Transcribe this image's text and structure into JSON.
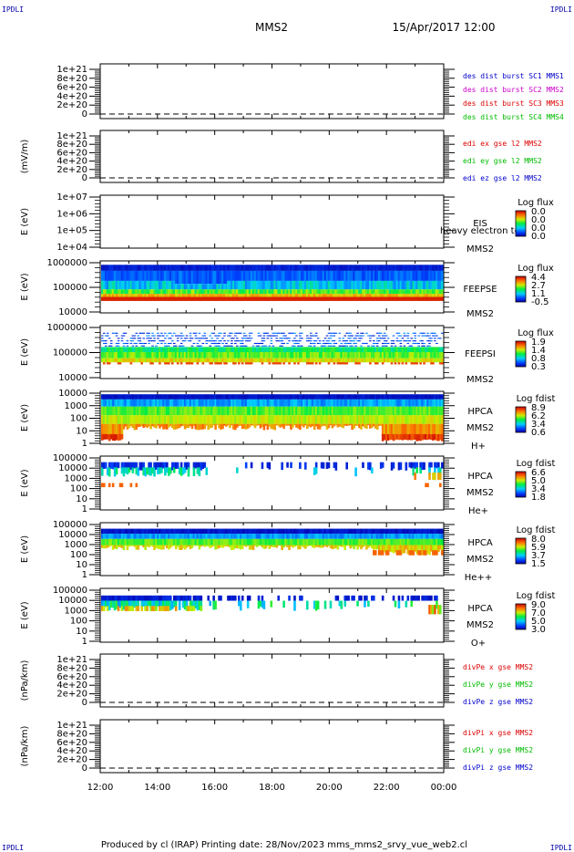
{
  "header": {
    "corner_left": "IPDLI",
    "corner_right": "IPDLI",
    "spacecraft": "MMS2",
    "datetime": "15/Apr/2017 12:00"
  },
  "footer": {
    "text": "Produced by cl (IRAP)   Printing date: 28/Nov/2023   mms_mms2_srvy_vue_web2.cl",
    "corner_left": "IPDLI",
    "corner_right": "IPDLI"
  },
  "colors": {
    "blue": "#0000cc",
    "magenta": "#cc00cc",
    "red": "#dd0000",
    "green": "#00bb00"
  },
  "chart_data": {
    "type": "heatmap",
    "x_ticks": [
      "12:00",
      "14:00",
      "16:00",
      "18:00",
      "20:00",
      "22:00",
      "00:00"
    ],
    "panels": [
      {
        "kind": "line",
        "ylabel": "",
        "yticks": [
          "1e+21",
          "8e+20",
          "6e+20",
          "4e+20",
          "2e+20",
          "0"
        ],
        "legend": [
          {
            "text": "des dist burst SC1 MMS1",
            "color": "#0000cc"
          },
          {
            "text": "des dist burst SC2 MMS2",
            "color": "#cc00cc"
          },
          {
            "text": "des dist burst SC3 MMS3",
            "color": "#dd0000"
          },
          {
            "text": "des dist burst SC4 MMS4",
            "color": "#00bb00"
          }
        ]
      },
      {
        "kind": "line",
        "ylabel": "(mV/m)",
        "yticks": [
          "1e+21",
          "8e+20",
          "6e+20",
          "4e+20",
          "2e+20",
          "0"
        ],
        "legend": [
          {
            "text": "edi ex gse l2 MMS2",
            "color": "#dd0000"
          },
          {
            "text": "edi ey gse l2 MMS2",
            "color": "#00bb00"
          },
          {
            "text": "edi ez gse l2 MMS2",
            "color": "#0000cc"
          }
        ]
      },
      {
        "kind": "spectro",
        "ylabel": "E (eV)",
        "yticks": [
          "1e+07",
          "1e+06",
          "1e+05",
          "1e+04"
        ],
        "instrument": [
          "EIS",
          "MMS2"
        ],
        "species": "",
        "overlay": "heavy electron to",
        "cb_title": "Log flux",
        "cb_ticks": [
          "0.0",
          "0.0",
          "0.0",
          "0.0"
        ],
        "fill": "none"
      },
      {
        "kind": "spectro",
        "ylabel": "E (eV)",
        "yticks": [
          "1000000",
          "100000",
          "10000"
        ],
        "instrument": [
          "FEEPSE",
          "MMS2"
        ],
        "species": "",
        "cb_title": "Log flux",
        "cb_ticks": [
          "4.4",
          "2.7",
          "1.1",
          "-0.5"
        ],
        "fill": "feepse"
      },
      {
        "kind": "spectro",
        "ylabel": "E (eV)",
        "yticks": [
          "1000000",
          "100000",
          "10000"
        ],
        "instrument": [
          "FEEPSI",
          "MMS2"
        ],
        "species": "",
        "cb_title": "Log flux",
        "cb_ticks": [
          "1.9",
          "1.4",
          "0.8",
          "0.3"
        ],
        "fill": "feepsi"
      },
      {
        "kind": "spectro",
        "ylabel": "E (eV)",
        "yticks": [
          "10000",
          "1000",
          "100",
          "10",
          "1"
        ],
        "instrument": [
          "HPCA",
          "MMS2"
        ],
        "species": "H+",
        "cb_title": "Log fdist",
        "cb_ticks": [
          "8.9",
          "6.2",
          "3.4",
          "0.6"
        ],
        "fill": "h"
      },
      {
        "kind": "spectro",
        "ylabel": "E (eV)",
        "yticks": [
          "100000",
          "10000",
          "1000",
          "100",
          "10",
          "1"
        ],
        "instrument": [
          "HPCA",
          "MMS2"
        ],
        "species": "He+",
        "cb_title": "Log fdist",
        "cb_ticks": [
          "6.6",
          "5.0",
          "3.4",
          "1.8"
        ],
        "fill": "he"
      },
      {
        "kind": "spectro",
        "ylabel": "E (eV)",
        "yticks": [
          "100000",
          "10000",
          "1000",
          "100",
          "10",
          "1"
        ],
        "instrument": [
          "HPCA",
          "MMS2"
        ],
        "species": "He++",
        "cb_title": "Log fdist",
        "cb_ticks": [
          "8.0",
          "5.9",
          "3.7",
          "1.5"
        ],
        "fill": "hepp"
      },
      {
        "kind": "spectro",
        "ylabel": "E (eV)",
        "yticks": [
          "100000",
          "10000",
          "1000",
          "100",
          "10",
          "1"
        ],
        "instrument": [
          "HPCA",
          "MMS2"
        ],
        "species": "O+",
        "cb_title": "Log fdist",
        "cb_ticks": [
          "9.0",
          "7.0",
          "5.0",
          "3.0"
        ],
        "fill": "o"
      },
      {
        "kind": "line",
        "ylabel": "(nPa/km)",
        "yticks": [
          "1e+21",
          "8e+20",
          "6e+20",
          "4e+20",
          "2e+20",
          "0"
        ],
        "legend": [
          {
            "text": "divPe x gse MMS2",
            "color": "#dd0000"
          },
          {
            "text": "divPe y gse MMS2",
            "color": "#00bb00"
          },
          {
            "text": "divPe z gse MMS2",
            "color": "#0000cc"
          }
        ]
      },
      {
        "kind": "line",
        "ylabel": "(nPa/km)",
        "yticks": [
          "1e+21",
          "8e+20",
          "6e+20",
          "4e+20",
          "2e+20",
          "0"
        ],
        "legend": [
          {
            "text": "divPi x gse MMS2",
            "color": "#dd0000"
          },
          {
            "text": "divPi y gse MMS2",
            "color": "#00bb00"
          },
          {
            "text": "divPi z gse MMS2",
            "color": "#0000cc"
          }
        ]
      }
    ]
  }
}
